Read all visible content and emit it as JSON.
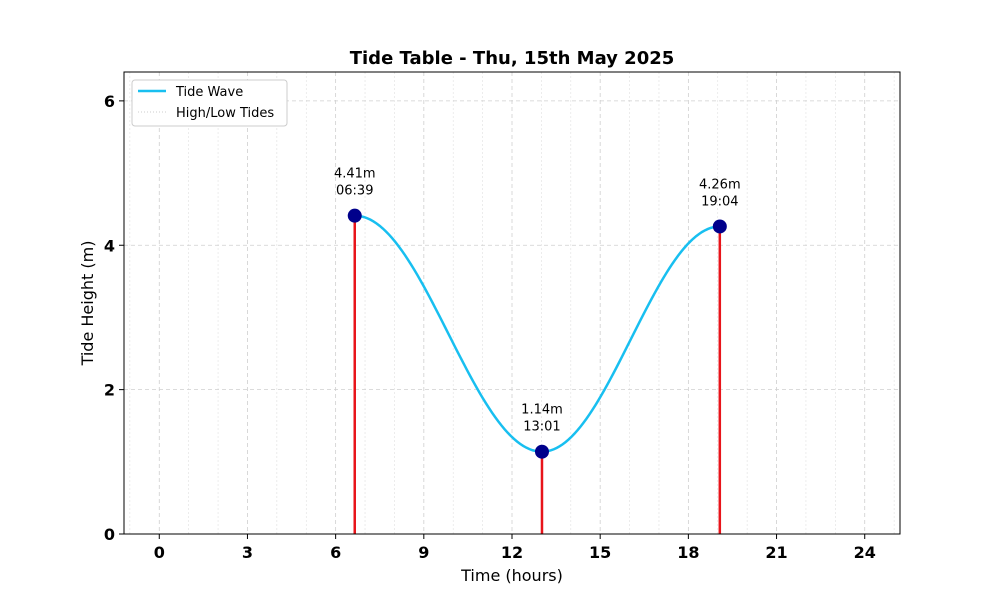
{
  "chart_data": {
    "type": "line",
    "title": "Tide Table - Thu, 15th May 2025",
    "xlabel": "Time (hours)",
    "ylabel": "Tide Height (m)",
    "xlim": [
      -1.2,
      25.2
    ],
    "ylim": [
      0,
      6.4
    ],
    "x_ticks": [
      0,
      3,
      6,
      9,
      12,
      15,
      18,
      21,
      24
    ],
    "x_tick_labels": [
      "0",
      "3",
      "6",
      "9",
      "12",
      "15",
      "18",
      "21",
      "24"
    ],
    "x_minor_step": 1,
    "y_ticks": [
      0,
      2,
      4,
      6
    ],
    "y_tick_labels": [
      "0",
      "2",
      "4",
      "6"
    ],
    "grid": true,
    "legend_position": "top-left",
    "series": [
      {
        "name": "Tide Wave",
        "color": "#18bff0",
        "style": "solid-curve",
        "x": [
          6.65,
          13.02,
          19.07
        ],
        "y": [
          4.41,
          1.14,
          4.26
        ]
      },
      {
        "name": "High/Low Tides",
        "color": "#cccccc",
        "style": "dotted"
      }
    ],
    "tide_markers_color": "#00008b",
    "tide_stem_color": "#e8141a",
    "tides": [
      {
        "x": 6.65,
        "y": 4.41,
        "height_label": "4.41m",
        "time_label": "06:39"
      },
      {
        "x": 13.02,
        "y": 1.14,
        "height_label": "1.14m",
        "time_label": "13:01"
      },
      {
        "x": 19.07,
        "y": 4.26,
        "height_label": "4.26m",
        "time_label": "19:04"
      }
    ]
  }
}
